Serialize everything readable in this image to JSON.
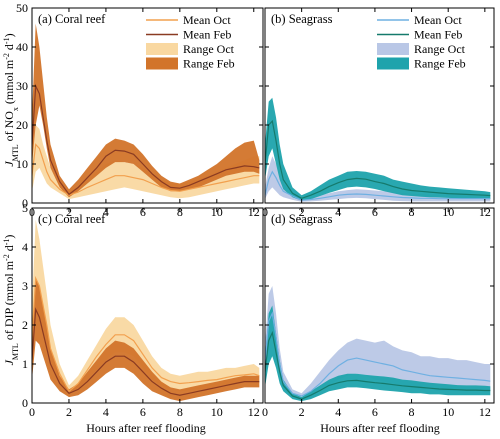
{
  "figure": {
    "ylabel_top": {
      "sym": "J",
      "sub": "MTL",
      "mid": " of NO",
      "sub2": "x",
      "unit": " (mmol m",
      "exp1": "-2",
      "mid2": " d",
      "exp2": "-1",
      "end": ")"
    },
    "ylabel_bottom": {
      "sym": "J",
      "sub": "MTL",
      "mid": " of DIP (mmol m",
      "exp1": "-2",
      "mid2": " d",
      "exp2": "-1",
      "end": ")"
    },
    "xlabel": "Hours after reef flooding"
  },
  "colors": {
    "coral_range_oct": "#f9d8a1",
    "coral_range_feb": "#d2742a",
    "coral_mean_oct": "#f2a04e",
    "coral_mean_feb": "#8a3b22",
    "sea_range_oct": "#b9c7e6",
    "sea_range_feb": "#1ea3ac",
    "sea_mean_oct": "#6fb0e2",
    "sea_mean_feb": "#157a6c"
  },
  "chart_data": [
    {
      "type": "area",
      "title": "(a) Coral reef",
      "xlim": [
        0,
        12.5
      ],
      "ylim": [
        0,
        50
      ],
      "xticks": [
        0,
        2,
        4,
        6,
        8,
        10,
        12
      ],
      "yticks": [
        0,
        10,
        20,
        30,
        40,
        50
      ],
      "legend": [
        "Mean Oct",
        "Mean Feb",
        "Range Oct",
        "Range Feb"
      ],
      "x": [
        0,
        0.2,
        0.4,
        0.6,
        0.8,
        1,
        1.5,
        2,
        2.5,
        3,
        3.5,
        4,
        4.5,
        5,
        5.5,
        6,
        6.5,
        7,
        7.5,
        8,
        8.5,
        9,
        9.5,
        10,
        10.5,
        11,
        11.5,
        12,
        12.3
      ],
      "series": [
        {
          "name": "Range Oct",
          "low": [
            3,
            8,
            9,
            7,
            5,
            4,
            2.5,
            1,
            1.5,
            2,
            2.5,
            3,
            3.5,
            4,
            3.5,
            3,
            2.5,
            2,
            1.5,
            1.2,
            1.5,
            2,
            2.5,
            3,
            3.5,
            4,
            4.5,
            5,
            5
          ],
          "high": [
            12,
            20,
            19,
            15,
            12,
            9,
            5,
            3,
            4,
            6,
            8,
            10,
            11,
            10.5,
            10,
            9,
            7.5,
            6,
            5,
            5,
            5.5,
            6,
            7,
            8,
            9,
            10,
            11,
            12,
            12
          ]
        },
        {
          "name": "Range Feb",
          "low": [
            10,
            20,
            25,
            20,
            14,
            9,
            4,
            1.5,
            3,
            5,
            7,
            9,
            10.5,
            10.5,
            10,
            8,
            6,
            4,
            3,
            3,
            3.5,
            4,
            5,
            6,
            7,
            7.5,
            8,
            8,
            7.5
          ],
          "high": [
            22,
            46,
            40,
            31,
            22,
            15,
            7,
            3.5,
            6,
            9,
            12,
            15,
            16.5,
            16,
            15,
            12.5,
            9.5,
            7,
            5.5,
            5,
            6,
            7,
            8.5,
            10,
            12,
            14,
            15.5,
            16,
            11
          ]
        },
        {
          "name": "Mean Oct",
          "values": [
            7,
            15,
            14,
            11,
            8,
            6,
            3.5,
            2,
            2.8,
            4,
            5,
            6,
            7,
            7,
            6.5,
            6,
            5,
            4,
            3.2,
            3,
            3.5,
            4,
            4.5,
            5,
            5.5,
            6,
            6.5,
            7,
            7
          ]
        },
        {
          "name": "Mean Feb",
          "values": [
            15,
            30,
            28,
            22,
            16,
            11,
            5.5,
            2.2,
            4,
            6.5,
            9,
            12,
            13.5,
            13.3,
            12.5,
            10,
            7.5,
            5.5,
            4,
            3.8,
            4.5,
            5.5,
            6.5,
            7.5,
            8.5,
            9,
            9.5,
            9.3,
            9
          ]
        }
      ]
    },
    {
      "type": "area",
      "title": "(b) Seagrass",
      "xlim": [
        0,
        12.5
      ],
      "ylim": [
        0,
        50
      ],
      "xticks": [
        0,
        2,
        4,
        6,
        8,
        10,
        12
      ],
      "yticks": [
        0,
        10,
        20,
        30,
        40,
        50
      ],
      "legend": [
        "Mean Oct",
        "Mean Feb",
        "Range Oct",
        "Range Feb"
      ],
      "x": [
        0,
        0.2,
        0.4,
        0.6,
        0.8,
        1,
        1.5,
        2,
        2.5,
        3,
        3.5,
        4,
        4.5,
        5,
        5.5,
        6,
        6.5,
        7,
        7.5,
        8,
        8.5,
        9,
        9.5,
        10,
        10.5,
        11,
        11.5,
        12,
        12.3
      ],
      "series": [
        {
          "name": "Range Oct",
          "low": [
            1,
            3,
            4,
            3,
            2,
            1.5,
            0.8,
            0.3,
            0.4,
            0.6,
            0.8,
            1,
            1.2,
            1.3,
            1.2,
            1,
            0.8,
            0.6,
            0.5,
            0.4,
            0.4,
            0.4,
            0.4,
            0.4,
            0.4,
            0.4,
            0.4,
            0.4,
            0.4
          ],
          "high": [
            4,
            9,
            12,
            10,
            7,
            5,
            3,
            1.2,
            1.5,
            2,
            2.5,
            3,
            3.3,
            3.5,
            3.4,
            3.2,
            3,
            2.8,
            2.6,
            2.4,
            2.3,
            2.2,
            2.2,
            2.2,
            2.2,
            2.2,
            2.2,
            2.2,
            2.2
          ]
        },
        {
          "name": "Range Feb",
          "low": [
            6,
            12,
            14,
            10,
            6,
            3.5,
            1.5,
            0.6,
            1,
            1.8,
            2.6,
            3.3,
            4,
            4.2,
            4,
            3.6,
            3,
            2.5,
            2,
            1.8,
            1.6,
            1.5,
            1.4,
            1.3,
            1.2,
            1.1,
            1.1,
            1,
            1
          ],
          "high": [
            15,
            26,
            27,
            22,
            15,
            10,
            4,
            2,
            3,
            4.5,
            6,
            7,
            8,
            8.2,
            8,
            7.5,
            7,
            6,
            5.5,
            5,
            4.5,
            4.2,
            4,
            3.8,
            3.6,
            3.4,
            3.2,
            3,
            2.8
          ]
        },
        {
          "name": "Mean Oct",
          "values": [
            2,
            6,
            8,
            6.5,
            4.5,
            3,
            1.8,
            0.7,
            0.9,
            1.2,
            1.6,
            2,
            2.2,
            2.3,
            2.2,
            2,
            1.8,
            1.6,
            1.4,
            1.3,
            1.2,
            1.2,
            1.1,
            1.1,
            1.1,
            1.1,
            1.1,
            1.1,
            1.1
          ]
        },
        {
          "name": "Mean Feb",
          "values": [
            10,
            20,
            21,
            16,
            10,
            6,
            2.5,
            1.2,
            2,
            3,
            4.2,
            5.2,
            6,
            6.3,
            6.1,
            5.5,
            5,
            4.2,
            3.6,
            3.2,
            3,
            2.8,
            2.6,
            2.4,
            2.3,
            2.2,
            2.1,
            2,
            1.9
          ]
        }
      ]
    },
    {
      "type": "area",
      "title": "(c) Coral reef",
      "xlim": [
        0,
        12.5
      ],
      "ylim": [
        0,
        5
      ],
      "xticks": [
        0,
        2,
        4,
        6,
        8,
        10,
        12
      ],
      "yticks": [
        0,
        1,
        2,
        3,
        4,
        5
      ],
      "x": [
        0,
        0.2,
        0.4,
        0.6,
        0.8,
        1,
        1.5,
        2,
        2.5,
        3,
        3.5,
        4,
        4.5,
        5,
        5.5,
        6,
        6.5,
        7,
        7.5,
        8,
        8.5,
        9,
        9.5,
        10,
        10.5,
        11,
        11.5,
        12,
        12.3
      ],
      "series": [
        {
          "name": "Range Oct",
          "low": [
            1,
            2.4,
            2.2,
            1.8,
            1.3,
            1,
            0.5,
            0.2,
            0.35,
            0.6,
            0.85,
            1.1,
            1.3,
            1.3,
            1.2,
            0.9,
            0.6,
            0.45,
            0.35,
            0.3,
            0.32,
            0.35,
            0.38,
            0.4,
            0.45,
            0.5,
            0.55,
            0.55,
            0.5
          ],
          "high": [
            2.5,
            4.7,
            4.2,
            3.5,
            2.8,
            2,
            1,
            0.45,
            0.7,
            1.1,
            1.5,
            1.9,
            2.2,
            2.2,
            2.0,
            1.6,
            1.2,
            0.9,
            0.75,
            0.7,
            0.75,
            0.8,
            0.8,
            0.85,
            0.9,
            0.9,
            0.95,
            1,
            0.9
          ]
        },
        {
          "name": "Range Feb",
          "low": [
            0.6,
            1.6,
            1.5,
            1.2,
            0.9,
            0.6,
            0.3,
            0.15,
            0.2,
            0.35,
            0.55,
            0.75,
            0.9,
            0.9,
            0.75,
            0.5,
            0.3,
            0.2,
            0.1,
            0.05,
            0.1,
            0.15,
            0.2,
            0.25,
            0.3,
            0.35,
            0.4,
            0.4,
            0.4
          ],
          "high": [
            1.8,
            3.2,
            3,
            2.5,
            2,
            1.4,
            0.7,
            0.35,
            0.5,
            0.8,
            1.1,
            1.4,
            1.6,
            1.55,
            1.4,
            1.1,
            0.8,
            0.55,
            0.4,
            0.35,
            0.4,
            0.45,
            0.5,
            0.55,
            0.6,
            0.65,
            0.7,
            0.7,
            0.7
          ]
        },
        {
          "name": "Mean Oct",
          "values": [
            1.7,
            3.2,
            3,
            2.5,
            2,
            1.4,
            0.75,
            0.3,
            0.5,
            0.85,
            1.2,
            1.5,
            1.75,
            1.75,
            1.6,
            1.25,
            0.9,
            0.65,
            0.55,
            0.5,
            0.52,
            0.55,
            0.58,
            0.6,
            0.65,
            0.7,
            0.72,
            0.75,
            0.7
          ]
        },
        {
          "name": "Mean Feb",
          "values": [
            1.1,
            2.4,
            2.2,
            1.8,
            1.4,
            1,
            0.5,
            0.25,
            0.35,
            0.55,
            0.8,
            1.05,
            1.2,
            1.2,
            1.05,
            0.8,
            0.55,
            0.38,
            0.25,
            0.2,
            0.25,
            0.3,
            0.35,
            0.4,
            0.45,
            0.5,
            0.55,
            0.55,
            0.55
          ]
        }
      ]
    },
    {
      "type": "area",
      "title": "(d) Seagrass",
      "xlim": [
        0,
        12.5
      ],
      "ylim": [
        0,
        5
      ],
      "xticks": [
        0,
        2,
        4,
        6,
        8,
        10,
        12
      ],
      "yticks": [
        0,
        1,
        2,
        3,
        4,
        5
      ],
      "x": [
        0,
        0.2,
        0.4,
        0.6,
        0.8,
        1,
        1.5,
        2,
        2.5,
        3,
        3.5,
        4,
        4.5,
        5,
        5.5,
        6,
        6.5,
        7,
        7.5,
        8,
        8.5,
        9,
        9.5,
        10,
        10.5,
        11,
        11.5,
        12,
        12.3
      ],
      "series": [
        {
          "name": "Range Oct",
          "low": [
            0.6,
            1.6,
            1.8,
            1.3,
            0.8,
            0.4,
            0.15,
            0.1,
            0.15,
            0.3,
            0.45,
            0.6,
            0.7,
            0.75,
            0.7,
            0.6,
            0.55,
            0.5,
            0.45,
            0.4,
            0.35,
            0.35,
            0.3,
            0.3,
            0.3,
            0.3,
            0.3,
            0.3,
            0.3
          ],
          "high": [
            1.5,
            2.8,
            3.0,
            2.3,
            1.4,
            0.8,
            0.35,
            0.25,
            0.5,
            0.8,
            1.1,
            1.35,
            1.55,
            1.65,
            1.6,
            1.55,
            1.6,
            1.45,
            1.35,
            1.3,
            1.2,
            1.2,
            1.15,
            1.15,
            1.1,
            1.1,
            1.05,
            1.0,
            1.0
          ]
        },
        {
          "name": "Range Feb",
          "low": [
            0.4,
            1.0,
            1.2,
            0.9,
            0.5,
            0.3,
            0.1,
            0.05,
            0.1,
            0.2,
            0.3,
            0.35,
            0.4,
            0.4,
            0.38,
            0.35,
            0.32,
            0.3,
            0.28,
            0.25,
            0.25,
            0.22,
            0.22,
            0.2,
            0.2,
            0.2,
            0.2,
            0.2,
            0.2
          ],
          "high": [
            1.2,
            2.3,
            2.5,
            1.8,
            1.1,
            0.6,
            0.25,
            0.15,
            0.3,
            0.45,
            0.6,
            0.7,
            0.75,
            0.75,
            0.72,
            0.7,
            0.68,
            0.65,
            0.6,
            0.58,
            0.55,
            0.52,
            0.5,
            0.48,
            0.46,
            0.45,
            0.45,
            0.44,
            0.43
          ]
        },
        {
          "name": "Mean Oct",
          "values": [
            1.0,
            2.1,
            2.3,
            1.7,
            1.0,
            0.55,
            0.25,
            0.18,
            0.3,
            0.5,
            0.75,
            0.95,
            1.1,
            1.15,
            1.1,
            1.05,
            1.0,
            0.95,
            0.85,
            0.8,
            0.75,
            0.7,
            0.68,
            0.66,
            0.64,
            0.62,
            0.6,
            0.58,
            0.56
          ]
        },
        {
          "name": "Mean Feb",
          "values": [
            0.8,
            1.6,
            1.8,
            1.3,
            0.8,
            0.45,
            0.18,
            0.1,
            0.2,
            0.32,
            0.45,
            0.52,
            0.57,
            0.58,
            0.55,
            0.52,
            0.5,
            0.47,
            0.44,
            0.42,
            0.4,
            0.38,
            0.36,
            0.35,
            0.34,
            0.33,
            0.33,
            0.32,
            0.32
          ]
        }
      ]
    }
  ]
}
